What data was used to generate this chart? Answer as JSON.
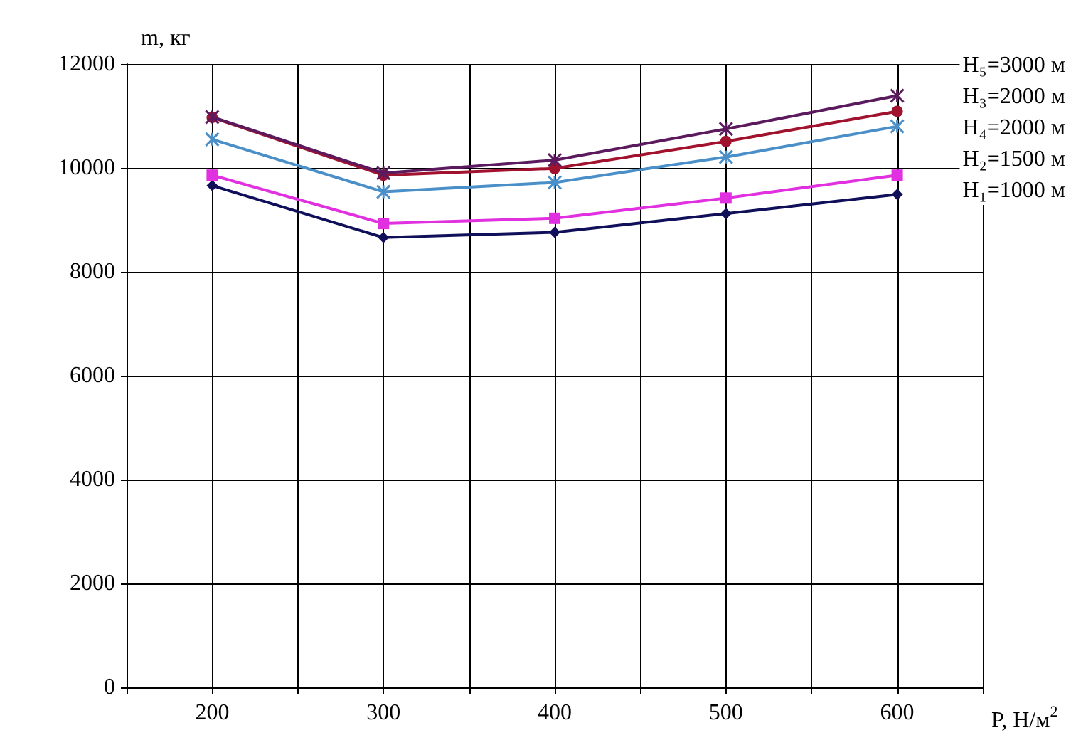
{
  "chart_data": {
    "type": "line",
    "xlabel": "P, Н/м$^{2}$",
    "ylabel": "m, кг",
    "x": [
      200,
      300,
      400,
      500,
      600
    ],
    "xlim": [
      150,
      650
    ],
    "xticks": [
      {
        "value": 150,
        "label": null
      },
      200,
      {
        "value": 250,
        "label": null
      },
      300,
      {
        "value": 350,
        "label": null
      },
      400,
      {
        "value": 450,
        "label": null
      },
      500,
      {
        "value": 550,
        "label": null
      },
      600,
      {
        "value": 650,
        "label": null
      }
    ],
    "ylim": [
      0,
      12000
    ],
    "yticks": [
      0,
      2000,
      4000,
      6000,
      8000,
      10000,
      12000
    ],
    "grid": true,
    "legend": "top right",
    "series": [
      {
        "name": "H₅=3000 м",
        "color": "#5b1a5e",
        "marker": "cross",
        "values": [
          10980,
          9900,
          10150,
          10750,
          11390
        ]
      },
      {
        "name": "H₃=2000 м",
        "color": "#a0122e",
        "marker": "circle",
        "values": [
          10970,
          9860,
          9990,
          10510,
          11090
        ]
      },
      {
        "name": "H₄=2000 м",
        "color": "#4a8fc8",
        "marker": "cross",
        "values": [
          10550,
          9540,
          9720,
          10210,
          10800
        ]
      },
      {
        "name": "H₂=1500 м",
        "color": "#e030e0",
        "marker": "square",
        "values": [
          9860,
          8930,
          9030,
          9420,
          9860
        ]
      },
      {
        "name": "H₁=1000 м",
        "color": "#10105a",
        "marker": "diamond",
        "values": [
          9660,
          8660,
          8760,
          9120,
          9490
        ]
      }
    ]
  }
}
